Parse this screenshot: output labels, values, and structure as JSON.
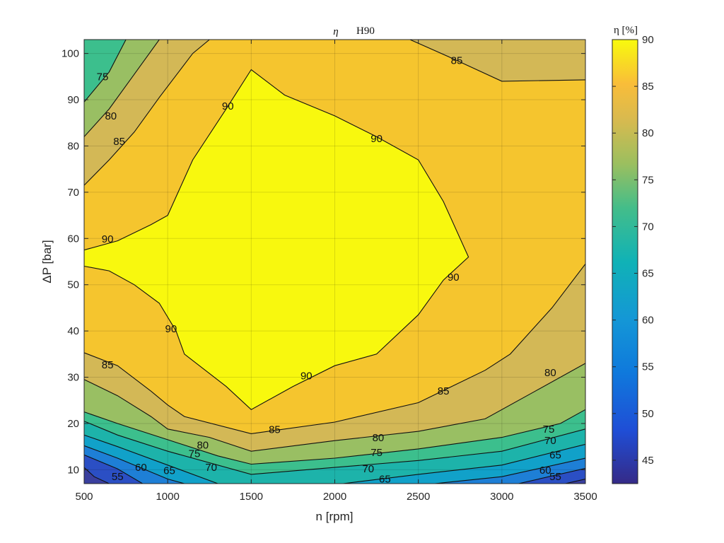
{
  "chart_data": {
    "type": "contour",
    "title": {
      "symbol": "η",
      "text": "H90"
    },
    "xlabel": "n [rpm]",
    "ylabel": "ΔP [bar]",
    "xlim": [
      500,
      3500
    ],
    "ylim": [
      7,
      103
    ],
    "xticks": [
      "500",
      "1000",
      "1500",
      "2000",
      "2500",
      "3000",
      "3500"
    ],
    "yticks": [
      "10",
      "20",
      "30",
      "40",
      "50",
      "60",
      "70",
      "80",
      "90",
      "100"
    ],
    "grid": true,
    "colorbar": {
      "label": "η [%]",
      "range": [
        42.5,
        90
      ],
      "ticks": [
        "45",
        "50",
        "55",
        "60",
        "65",
        "70",
        "75",
        "80",
        "85",
        "90"
      ]
    },
    "levels": [
      55,
      60,
      65,
      70,
      75,
      80,
      85,
      90
    ],
    "level_colors": {
      "50": "#2b4fc4",
      "55": "#1e7fd6",
      "60": "#11a1c9",
      "65": "#1db3aa",
      "70": "#3cbf8d",
      "75": "#99bf63",
      "80": "#d3b856",
      "85": "#f5c52e",
      "90": "#f8f80e"
    },
    "contours": [
      {
        "level": 90,
        "label": "90",
        "points": [
          [
            500,
            57.5
          ],
          [
            700,
            59.5
          ],
          [
            900,
            63
          ],
          [
            1000,
            65
          ],
          [
            1050,
            69
          ],
          [
            1150,
            77
          ],
          [
            1350,
            88
          ],
          [
            1500,
            96.5
          ],
          [
            1700,
            91
          ],
          [
            2000,
            86.5
          ],
          [
            2250,
            82
          ],
          [
            2500,
            77
          ],
          [
            2650,
            68
          ],
          [
            2800,
            56
          ],
          [
            2650,
            51
          ],
          [
            2500,
            43.5
          ],
          [
            2250,
            35
          ],
          [
            2000,
            32.5
          ],
          [
            1750,
            28
          ],
          [
            1500,
            23
          ],
          [
            1350,
            28
          ],
          [
            1100,
            35
          ],
          [
            1050,
            40
          ],
          [
            950,
            46
          ],
          [
            800,
            50
          ],
          [
            650,
            53
          ],
          [
            500,
            54
          ]
        ],
        "closed": true,
        "label_positions": [
          [
            1360,
            88.6
          ],
          [
            2250,
            81.6
          ],
          [
            640,
            59.9
          ],
          [
            1020,
            40.5
          ],
          [
            2710,
            51.6
          ],
          [
            1830,
            30.3
          ]
        ]
      },
      {
        "level": 85,
        "label": "85",
        "points": [
          [
            2450,
            103
          ],
          [
            2700,
            99
          ],
          [
            3000,
            94
          ],
          [
            3500,
            94.3
          ]
        ],
        "label_positions": [
          [
            2730,
            98.5
          ]
        ]
      },
      {
        "level": 85,
        "label": "85",
        "points": [
          [
            500,
            71.5
          ],
          [
            650,
            77
          ],
          [
            800,
            83
          ],
          [
            950,
            90.5
          ],
          [
            1150,
            100
          ],
          [
            1250,
            103
          ]
        ],
        "label_positions": [
          [
            710,
            81
          ]
        ]
      },
      {
        "level": 85,
        "label": "85",
        "points": [
          [
            500,
            35.3
          ],
          [
            700,
            32.5
          ],
          [
            900,
            27
          ],
          [
            1000,
            24
          ],
          [
            1100,
            21.5
          ],
          [
            1500,
            17.8
          ],
          [
            2000,
            20.3
          ],
          [
            2500,
            24.5
          ],
          [
            2900,
            31.5
          ],
          [
            3050,
            35
          ],
          [
            3300,
            45
          ],
          [
            3500,
            54.5
          ]
        ],
        "label_positions": [
          [
            640,
            32.7
          ],
          [
            1640,
            18.7
          ],
          [
            2650,
            27
          ]
        ]
      },
      {
        "level": 80,
        "label": "80",
        "points": [
          [
            500,
            82
          ],
          [
            650,
            88
          ],
          [
            800,
            95.5
          ],
          [
            950,
            103
          ]
        ],
        "label_positions": [
          [
            660,
            86.5
          ]
        ]
      },
      {
        "level": 80,
        "label": "80",
        "points": [
          [
            500,
            29.5
          ],
          [
            700,
            26
          ],
          [
            900,
            21.5
          ],
          [
            1000,
            18.8
          ],
          [
            1250,
            17
          ],
          [
            1500,
            14
          ],
          [
            2000,
            16.3
          ],
          [
            2500,
            18.3
          ],
          [
            2900,
            21
          ],
          [
            3200,
            27
          ],
          [
            3500,
            33
          ]
        ],
        "label_positions": [
          [
            1210,
            15.3
          ],
          [
            2260,
            16.9
          ],
          [
            3290,
            31
          ]
        ]
      },
      {
        "level": 75,
        "label": "75",
        "points": [
          [
            500,
            89.5
          ],
          [
            650,
            96
          ],
          [
            750,
            103
          ]
        ],
        "label_positions": [
          [
            610,
            95
          ]
        ]
      },
      {
        "level": 75,
        "label": "75",
        "points": [
          [
            500,
            22.5
          ],
          [
            700,
            20
          ],
          [
            1000,
            16.5
          ],
          [
            1300,
            13
          ],
          [
            1500,
            11.2
          ],
          [
            2000,
            12.5
          ],
          [
            2500,
            14.5
          ],
          [
            3000,
            17
          ],
          [
            3350,
            20
          ],
          [
            3500,
            23
          ]
        ],
        "label_positions": [
          [
            1160,
            13.5
          ],
          [
            2250,
            13.7
          ],
          [
            3280,
            18.8
          ]
        ]
      },
      {
        "level": 70,
        "label": "70",
        "points": [
          [
            500,
            20.5
          ],
          [
            700,
            17.5
          ],
          [
            1000,
            14
          ],
          [
            1500,
            9
          ],
          [
            2000,
            10.5
          ],
          [
            2500,
            12
          ],
          [
            3000,
            14
          ],
          [
            3500,
            18.8
          ]
        ],
        "label_positions": [
          [
            1260,
            10.5
          ],
          [
            2200,
            10.2
          ],
          [
            3290,
            16.3
          ]
        ]
      },
      {
        "level": 65,
        "label": "65",
        "points": [
          [
            500,
            17.5
          ],
          [
            700,
            15
          ],
          [
            1000,
            11
          ],
          [
            1300,
            7
          ]
        ],
        "label_positions": [
          [
            1010,
            9.8
          ]
        ]
      },
      {
        "level": 65,
        "label": "65",
        "points": [
          [
            2050,
            7
          ],
          [
            2500,
            9
          ],
          [
            3000,
            11
          ],
          [
            3500,
            15.5
          ]
        ],
        "label_positions": [
          [
            2300,
            8
          ],
          [
            3320,
            13.2
          ]
        ]
      },
      {
        "level": 60,
        "label": "60",
        "points": [
          [
            500,
            15.2
          ],
          [
            700,
            12.5
          ],
          [
            1000,
            8
          ],
          [
            1100,
            7
          ]
        ],
        "label_positions": [
          [
            840,
            10.5
          ]
        ]
      },
      {
        "level": 60,
        "label": "60",
        "points": [
          [
            2600,
            7
          ],
          [
            3000,
            8.5
          ],
          [
            3500,
            12.5
          ]
        ],
        "label_positions": [
          [
            3260,
            9.9
          ]
        ]
      },
      {
        "level": 55,
        "label": "55",
        "points": [
          [
            500,
            13.2
          ],
          [
            700,
            10.2
          ],
          [
            850,
            7
          ]
        ],
        "label_positions": [
          [
            700,
            8.5
          ]
        ]
      },
      {
        "level": 55,
        "label": "55",
        "points": [
          [
            3100,
            7
          ],
          [
            3500,
            10.3
          ]
        ],
        "label_positions": [
          [
            3320,
            8.5
          ]
        ]
      },
      {
        "level": 50,
        "label": "",
        "points": [
          [
            500,
            10.5
          ],
          [
            560,
            8.5
          ],
          [
            650,
            7
          ]
        ],
        "label_positions": []
      },
      {
        "level": 50,
        "label": "",
        "points": [
          [
            3380,
            7
          ],
          [
            3500,
            8
          ]
        ],
        "label_positions": []
      }
    ]
  }
}
